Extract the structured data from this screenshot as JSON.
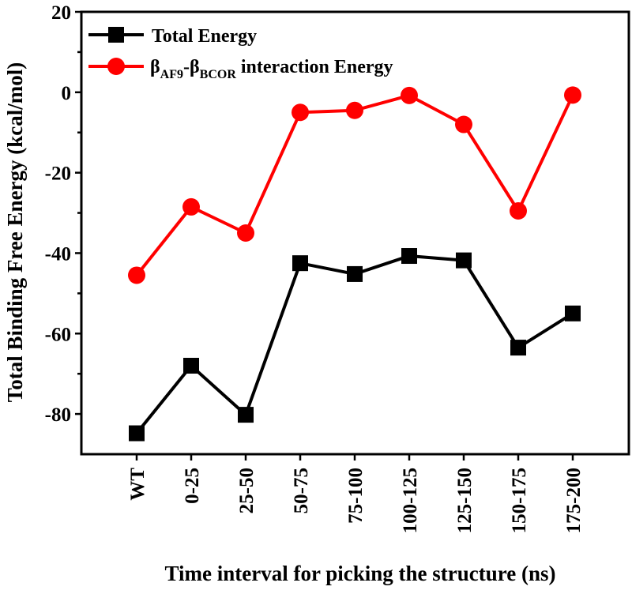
{
  "chart_data": {
    "type": "line",
    "categories": [
      "WT",
      "0-25",
      "25-50",
      "50-75",
      "75-100",
      "100-125",
      "125-150",
      "150-175",
      "175-200"
    ],
    "series": [
      {
        "name": "Total Energy",
        "color": "#000000",
        "marker": "square",
        "values": [
          -84.8,
          -68.0,
          -80.2,
          -42.5,
          -45.2,
          -40.7,
          -41.8,
          -63.5,
          -55.0
        ]
      },
      {
        "name_parts": {
          "sym1": "β",
          "sub1": "AF9",
          "dash": "-",
          "sym2": "β",
          "sub2": "BCOR",
          "rest": " interaction Energy"
        },
        "color": "#ff0000",
        "marker": "circle",
        "values": [
          -45.5,
          -28.5,
          -35.0,
          -5.0,
          -4.5,
          -0.8,
          -8.0,
          -29.5,
          -0.7
        ]
      }
    ],
    "xlabel": "Time interval for picking the structure (ns)",
    "ylabel": "Total Binding Free Energy (kcal/mol)",
    "ylim": [
      -90,
      20
    ],
    "yticks": [
      "-80",
      "-60",
      "-40",
      "-20",
      "0",
      "20"
    ],
    "legend_position": "top-left",
    "grid": false
  }
}
